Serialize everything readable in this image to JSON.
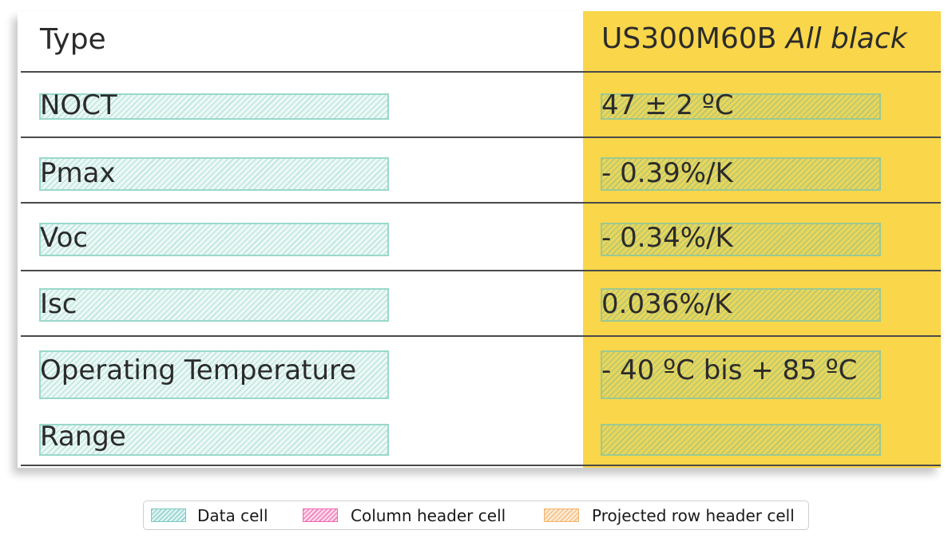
{
  "table": {
    "header": {
      "label": "Type",
      "value_model": "US300M60B",
      "value_suffix": "All black"
    },
    "rows": [
      {
        "label": "NOCT",
        "value": "47 ± 2 ºC"
      },
      {
        "label": "Pmax",
        "value": "- 0.39%/K"
      },
      {
        "label": "Voc",
        "value": "- 0.34%/K"
      },
      {
        "label": "Isc",
        "value": "0.036%/K"
      },
      {
        "label": "Operating Temperature",
        "label_line2": "Range",
        "value": "- 40 ºC  bis + 85 ºC"
      }
    ],
    "colors": {
      "value_column": "#f9d64a",
      "rule": "#4a4a4a"
    }
  },
  "legend": {
    "items": [
      {
        "label": "Data cell",
        "color": "#8fd3cf"
      },
      {
        "label": "Column header cell",
        "color": "#f06ab0"
      },
      {
        "label": "Projected row header cell",
        "color": "#f7b56a"
      }
    ]
  }
}
